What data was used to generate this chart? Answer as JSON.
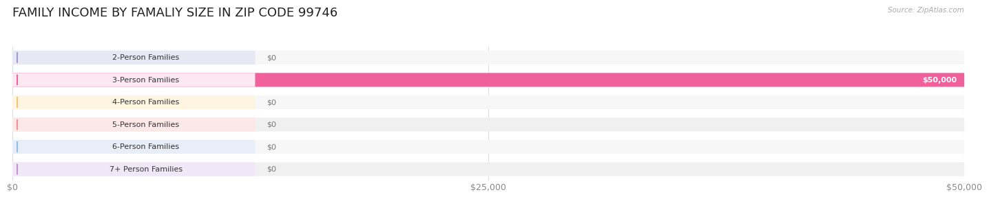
{
  "title": "FAMILY INCOME BY FAMALIY SIZE IN ZIP CODE 99746",
  "source": "Source: ZipAtlas.com",
  "categories": [
    "2-Person Families",
    "3-Person Families",
    "4-Person Families",
    "5-Person Families",
    "6-Person Families",
    "7+ Person Families"
  ],
  "values": [
    0,
    50000,
    0,
    0,
    0,
    0
  ],
  "max_value": 50000,
  "bar_colors": [
    "#9b9bd0",
    "#f0609a",
    "#f5c070",
    "#f59090",
    "#90b8e8",
    "#c090d0"
  ],
  "label_bg_colors": [
    "#e8e8f5",
    "#fce8f0",
    "#fdf5e0",
    "#fde8e8",
    "#e8eef8",
    "#f0e8f8"
  ],
  "value_labels": [
    "$0",
    "$50,000",
    "$0",
    "$0",
    "$0",
    "$0"
  ],
  "xtick_labels": [
    "$0",
    "$25,000",
    "$50,000"
  ],
  "xtick_values": [
    0,
    25000,
    50000
  ],
  "title_fontsize": 13,
  "bar_height": 0.62,
  "row_bg_colors": [
    "#f7f7f7",
    "#f0f0f0"
  ],
  "background_color": "#ffffff",
  "grid_color": "#dddddd"
}
